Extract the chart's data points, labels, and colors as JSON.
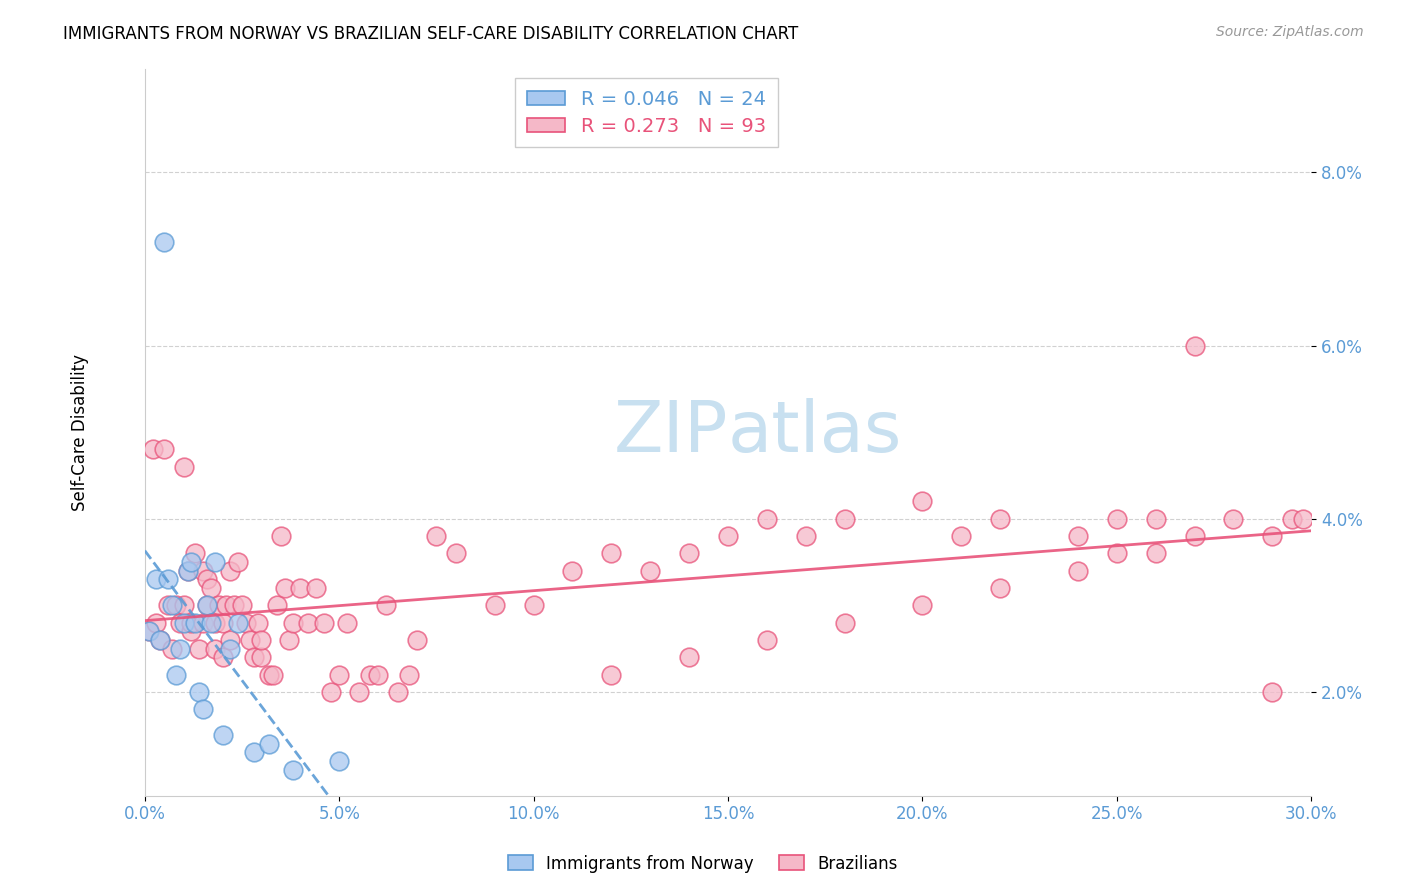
{
  "title": "IMMIGRANTS FROM NORWAY VS BRAZILIAN SELF-CARE DISABILITY CORRELATION CHART",
  "source": "Source: ZipAtlas.com",
  "ylabel": "Self-Care Disability",
  "xlim": [
    0.0,
    0.3
  ],
  "ylim": [
    0.008,
    0.092
  ],
  "x_tick_vals": [
    0.0,
    0.05,
    0.1,
    0.15,
    0.2,
    0.25,
    0.3
  ],
  "x_tick_labels": [
    "0.0%",
    "5.0%",
    "10.0%",
    "15.0%",
    "20.0%",
    "25.0%",
    "30.0%"
  ],
  "y_tick_vals": [
    0.02,
    0.04,
    0.06,
    0.08
  ],
  "y_tick_labels": [
    "2.0%",
    "4.0%",
    "6.0%",
    "8.0%"
  ],
  "norway_R": "0.046",
  "norway_N": "24",
  "brazil_R": "0.273",
  "brazil_N": "93",
  "norway_color": "#a8c8f0",
  "brazil_color": "#f5b8c8",
  "norway_edge_color": "#5b9bd5",
  "brazil_edge_color": "#e8537a",
  "norway_line_color": "#5b9bd5",
  "brazil_line_color": "#e8537a",
  "tick_color": "#5b9bd5",
  "watermark_color": "#c8e0f0",
  "legend_label_norway": "Immigrants from Norway",
  "legend_label_brazil": "Brazilians",
  "norway_x": [
    0.001,
    0.003,
    0.004,
    0.005,
    0.006,
    0.007,
    0.008,
    0.009,
    0.01,
    0.011,
    0.012,
    0.013,
    0.014,
    0.015,
    0.016,
    0.017,
    0.018,
    0.02,
    0.022,
    0.024,
    0.028,
    0.032,
    0.038,
    0.05
  ],
  "norway_y": [
    0.027,
    0.033,
    0.026,
    0.072,
    0.033,
    0.03,
    0.022,
    0.025,
    0.028,
    0.034,
    0.035,
    0.028,
    0.02,
    0.018,
    0.03,
    0.028,
    0.035,
    0.015,
    0.025,
    0.028,
    0.013,
    0.014,
    0.011,
    0.012
  ],
  "brazil_x": [
    0.001,
    0.002,
    0.003,
    0.004,
    0.005,
    0.006,
    0.007,
    0.008,
    0.009,
    0.01,
    0.01,
    0.011,
    0.012,
    0.012,
    0.013,
    0.014,
    0.015,
    0.015,
    0.016,
    0.016,
    0.017,
    0.018,
    0.018,
    0.019,
    0.02,
    0.02,
    0.021,
    0.022,
    0.022,
    0.023,
    0.024,
    0.025,
    0.026,
    0.027,
    0.028,
    0.029,
    0.03,
    0.03,
    0.032,
    0.033,
    0.034,
    0.035,
    0.036,
    0.037,
    0.038,
    0.04,
    0.042,
    0.044,
    0.046,
    0.048,
    0.05,
    0.052,
    0.055,
    0.058,
    0.06,
    0.062,
    0.065,
    0.068,
    0.07,
    0.075,
    0.08,
    0.09,
    0.1,
    0.11,
    0.12,
    0.13,
    0.14,
    0.15,
    0.16,
    0.17,
    0.18,
    0.2,
    0.21,
    0.22,
    0.24,
    0.25,
    0.26,
    0.27,
    0.28,
    0.29,
    0.295,
    0.298,
    0.25,
    0.24,
    0.22,
    0.2,
    0.18,
    0.16,
    0.14,
    0.12,
    0.26,
    0.27,
    0.29
  ],
  "brazil_y": [
    0.027,
    0.048,
    0.028,
    0.026,
    0.048,
    0.03,
    0.025,
    0.03,
    0.028,
    0.03,
    0.046,
    0.034,
    0.027,
    0.028,
    0.036,
    0.025,
    0.034,
    0.028,
    0.03,
    0.033,
    0.032,
    0.025,
    0.028,
    0.03,
    0.028,
    0.024,
    0.03,
    0.026,
    0.034,
    0.03,
    0.035,
    0.03,
    0.028,
    0.026,
    0.024,
    0.028,
    0.024,
    0.026,
    0.022,
    0.022,
    0.03,
    0.038,
    0.032,
    0.026,
    0.028,
    0.032,
    0.028,
    0.032,
    0.028,
    0.02,
    0.022,
    0.028,
    0.02,
    0.022,
    0.022,
    0.03,
    0.02,
    0.022,
    0.026,
    0.038,
    0.036,
    0.03,
    0.03,
    0.034,
    0.036,
    0.034,
    0.036,
    0.038,
    0.04,
    0.038,
    0.04,
    0.042,
    0.038,
    0.04,
    0.038,
    0.04,
    0.04,
    0.06,
    0.04,
    0.038,
    0.04,
    0.04,
    0.036,
    0.034,
    0.032,
    0.03,
    0.028,
    0.026,
    0.024,
    0.022,
    0.036,
    0.038,
    0.02
  ]
}
